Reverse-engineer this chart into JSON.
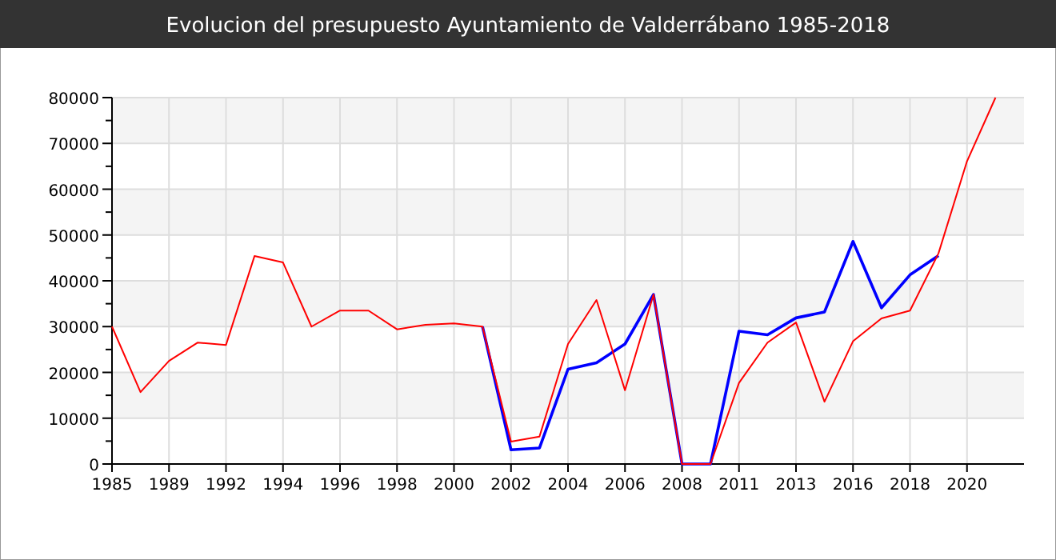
{
  "chart_data": {
    "type": "line",
    "title": "Evolucion del presupuesto Ayuntamiento de Valderrábano 1985-2018",
    "categories": [
      "1985",
      null,
      "1989",
      null,
      "1992",
      null,
      "1994",
      null,
      "1996",
      null,
      "1998",
      null,
      "2000",
      null,
      "2002",
      null,
      "2004",
      null,
      "2006",
      null,
      "2008",
      null,
      "2011",
      null,
      "2013",
      null,
      "2016",
      null,
      "2018",
      null,
      "2020",
      null
    ],
    "series": [
      {
        "color": "#0000ff",
        "values": [
          null,
          null,
          null,
          null,
          null,
          null,
          null,
          null,
          null,
          null,
          null,
          null,
          null,
          30000,
          3100,
          3500,
          20700,
          22100,
          26200,
          37000,
          0,
          0,
          29000,
          28200,
          31900,
          33200,
          48600,
          34100,
          41300,
          45500,
          null,
          null
        ]
      },
      {
        "color": "#ff0000",
        "values": [
          30000,
          15700,
          22500,
          26500,
          26000,
          45400,
          44000,
          30000,
          33500,
          33500,
          29400,
          30400,
          30700,
          30000,
          4900,
          6000,
          26200,
          35800,
          16100,
          37000,
          0,
          0,
          17700,
          26500,
          30900,
          13600,
          26800,
          31800,
          33500,
          46000,
          66100,
          80000
        ]
      }
    ],
    "ylim": [
      0,
      80000
    ],
    "yticks": [
      0,
      {
        "value": 5000,
        "label": null
      },
      10000,
      {
        "value": 15000,
        "label": null
      },
      20000,
      {
        "value": 25000,
        "label": null
      },
      30000,
      {
        "value": 35000,
        "label": null
      },
      40000,
      {
        "value": 45000,
        "label": null
      },
      50000,
      {
        "value": 55000,
        "label": null
      },
      60000,
      {
        "value": 65000,
        "label": null
      },
      70000,
      {
        "value": 75000,
        "label": null
      },
      80000
    ],
    "grid": true
  }
}
